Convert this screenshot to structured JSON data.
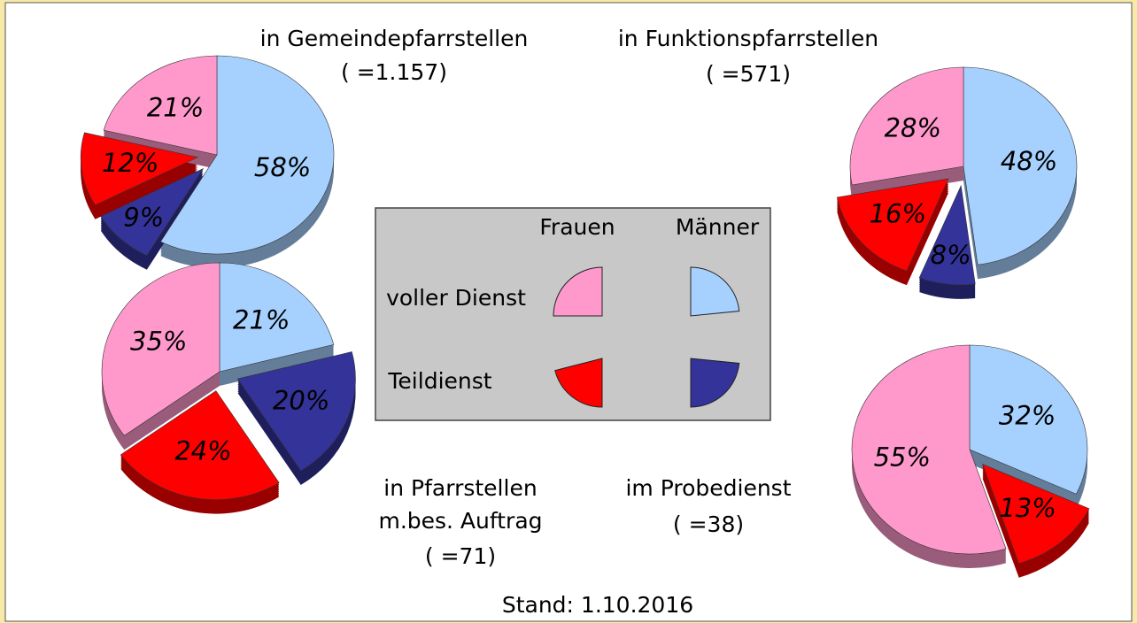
{
  "chart_data": [
    {
      "type": "pie",
      "title": [
        "in Gemeindepfarrstellen",
        "(  =1.157)"
      ],
      "values": [
        58,
        9,
        12,
        21
      ],
      "value_labels": [
        "58%",
        "9%",
        "12%",
        "21%"
      ],
      "colors": [
        "#a6d1ff",
        "#333399",
        "#ff0000",
        "#ff99cc"
      ]
    },
    {
      "type": "pie",
      "title": [
        "in Funktionspfarrstellen",
        "(  =571)"
      ],
      "values": [
        48,
        8,
        16,
        28
      ],
      "value_labels": [
        "48%",
        "8%",
        "16%",
        "28%"
      ],
      "colors": [
        "#a6d1ff",
        "#333399",
        "#ff0000",
        "#ff99cc"
      ]
    },
    {
      "type": "pie",
      "title": [
        "in Pfarrstellen",
        "m.bes. Auftrag",
        "(  =71)"
      ],
      "values": [
        21,
        20,
        24,
        35
      ],
      "value_labels": [
        "21%",
        "20%",
        "24%",
        "35%"
      ],
      "colors": [
        "#a6d1ff",
        "#333399",
        "#ff0000",
        "#ff99cc"
      ]
    },
    {
      "type": "pie",
      "title": [
        "im Probedienst",
        "(  =38)"
      ],
      "values": [
        32,
        13,
        55
      ],
      "value_labels": [
        "32%",
        "13%",
        "55%"
      ],
      "colors": [
        "#a6d1ff",
        "#ff0000",
        "#ff99cc"
      ]
    }
  ],
  "legend": {
    "columns": [
      "Frauen",
      "Männer"
    ],
    "rows": [
      "voller Dienst",
      "Teildienst"
    ],
    "colors": [
      [
        "#ff99cc",
        "#a6d1ff"
      ],
      [
        "#ff0000",
        "#333399"
      ]
    ]
  },
  "footer": "Stand: 1.10.2016"
}
